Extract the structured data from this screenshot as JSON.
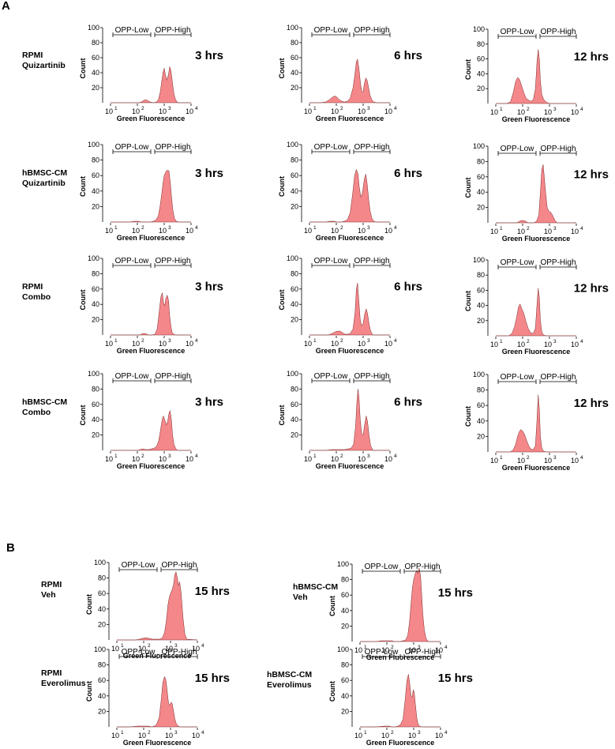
{
  "figure": {
    "panels": [
      {
        "letter": "A"
      },
      {
        "letter": "B"
      }
    ]
  },
  "chart_data": [
    {
      "type": "area",
      "panel": "A",
      "row": [
        "RPMI",
        "Quizartinib"
      ],
      "time": "3 hrs",
      "xlabel": "Green Fluorescence",
      "ylabel": "Count",
      "yticks": [
        20,
        40,
        60,
        80,
        100
      ],
      "ylim": [
        0,
        100
      ],
      "x_scale": "log",
      "xticks": [
        "10^1",
        "10^2",
        "10^3",
        "10^4"
      ],
      "gates": [
        "OPP-Low",
        "OPP-High"
      ],
      "x": [
        10,
        60,
        110,
        140,
        170,
        200,
        240,
        300,
        400,
        520,
        620,
        720,
        820,
        900,
        1000,
        1100,
        1250,
        1450,
        1600,
        1750,
        1900,
        2100,
        2300,
        2600,
        3000,
        3500,
        10000
      ],
      "y": [
        0,
        0,
        0,
        1,
        3,
        4,
        3,
        1,
        0,
        1,
        5,
        15,
        30,
        40,
        46,
        38,
        30,
        38,
        48,
        44,
        35,
        22,
        12,
        5,
        1,
        0,
        0
      ]
    },
    {
      "type": "area",
      "panel": "A",
      "row": [
        "RPMI",
        "Quizartinib"
      ],
      "time": "6 hrs",
      "xlabel": "Green Fluorescence",
      "ylabel": "Count",
      "yticks": [
        20,
        40,
        60,
        80,
        100
      ],
      "ylim": [
        0,
        100
      ],
      "x_scale": "log",
      "xticks": [
        "10^1",
        "10^2",
        "10^3",
        "10^4"
      ],
      "gates": [
        "OPP-Low",
        "OPP-High"
      ],
      "x": [
        10,
        25,
        40,
        55,
        70,
        85,
        100,
        130,
        160,
        200,
        260,
        330,
        420,
        500,
        560,
        620,
        700,
        800,
        900,
        1000,
        1100,
        1250,
        1400,
        1600,
        1800,
        2100,
        2500,
        3200,
        10000
      ],
      "y": [
        0,
        0,
        1,
        4,
        7,
        9,
        8,
        4,
        2,
        1,
        2,
        6,
        20,
        40,
        55,
        58,
        45,
        25,
        15,
        14,
        25,
        33,
        30,
        20,
        10,
        4,
        1,
        0,
        0
      ]
    },
    {
      "type": "area",
      "panel": "A",
      "row": [
        "RPMI",
        "Quizartinib"
      ],
      "time": "12 hrs",
      "xlabel": "Green Fluorescence",
      "ylabel": "Count",
      "yticks": [
        20,
        40,
        60,
        80,
        100
      ],
      "ylim": [
        0,
        100
      ],
      "x_scale": "log",
      "xticks": [
        "10^1",
        "10^2",
        "10^3",
        "10^4"
      ],
      "gates": [
        "OPP-Low",
        "OPP-High"
      ],
      "x": [
        10,
        25,
        35,
        45,
        55,
        65,
        75,
        90,
        110,
        130,
        160,
        200,
        250,
        300,
        340,
        380,
        420,
        460,
        520,
        600,
        700,
        850,
        1100,
        1500,
        10000
      ],
      "y": [
        0,
        0,
        2,
        15,
        30,
        35,
        33,
        25,
        15,
        8,
        5,
        3,
        5,
        20,
        55,
        73,
        60,
        30,
        12,
        6,
        3,
        1,
        0,
        0,
        0
      ]
    },
    {
      "type": "area",
      "panel": "A",
      "row": [
        "hBMSC-CM",
        "Quizartinib"
      ],
      "time": "3 hrs",
      "xlabel": "Green Fluorescence",
      "ylabel": "Count",
      "yticks": [
        20,
        40,
        60,
        80,
        100
      ],
      "ylim": [
        0,
        100
      ],
      "x_scale": "log",
      "xticks": [
        "10^1",
        "10^2",
        "10^3",
        "10^4"
      ],
      "gates": [
        "OPP-Low",
        "OPP-High"
      ],
      "x": [
        10,
        50,
        80,
        110,
        140,
        200,
        300,
        400,
        500,
        600,
        700,
        800,
        900,
        1000,
        1150,
        1300,
        1500,
        1700,
        1900,
        2100,
        2400,
        2800,
        3500,
        10000
      ],
      "y": [
        0,
        0,
        1,
        1,
        0,
        0,
        0,
        1,
        3,
        8,
        20,
        35,
        50,
        60,
        65,
        67,
        66,
        50,
        30,
        15,
        5,
        1,
        0,
        0
      ]
    },
    {
      "type": "area",
      "panel": "A",
      "row": [
        "hBMSC-CM",
        "Quizartinib"
      ],
      "time": "6 hrs",
      "xlabel": "Green Fluorescence",
      "ylabel": "Count",
      "yticks": [
        20,
        40,
        60,
        80,
        100
      ],
      "ylim": [
        0,
        100
      ],
      "x_scale": "log",
      "xticks": [
        "10^1",
        "10^2",
        "10^3",
        "10^4"
      ],
      "gates": [
        "OPP-Low",
        "OPP-High"
      ],
      "x": [
        10,
        40,
        60,
        80,
        110,
        150,
        200,
        260,
        330,
        400,
        480,
        560,
        640,
        720,
        820,
        950,
        1100,
        1250,
        1400,
        1600,
        1800,
        2100,
        2500,
        3000,
        10000
      ],
      "y": [
        0,
        0,
        1,
        1,
        0,
        0,
        1,
        3,
        12,
        35,
        60,
        68,
        62,
        45,
        32,
        38,
        55,
        62,
        50,
        30,
        15,
        5,
        1,
        0,
        0
      ]
    },
    {
      "type": "area",
      "panel": "A",
      "row": [
        "hBMSC-CM",
        "Quizartinib"
      ],
      "time": "12 hrs",
      "xlabel": "Green Fluorescence",
      "ylabel": "Count",
      "yticks": [
        20,
        40,
        60,
        80,
        100
      ],
      "ylim": [
        0,
        100
      ],
      "x_scale": "log",
      "xticks": [
        "10^1",
        "10^2",
        "10^3",
        "10^4"
      ],
      "gates": [
        "OPP-Low",
        "OPP-High"
      ],
      "x": [
        10,
        60,
        75,
        90,
        110,
        130,
        160,
        200,
        260,
        330,
        400,
        460,
        520,
        580,
        640,
        720,
        820,
        950,
        1100,
        1300,
        1600,
        2000,
        10000
      ],
      "y": [
        0,
        0,
        2,
        3,
        3,
        2,
        0,
        0,
        0,
        2,
        10,
        40,
        70,
        76,
        60,
        40,
        20,
        15,
        14,
        10,
        3,
        0,
        0
      ]
    },
    {
      "type": "area",
      "panel": "A",
      "row": [
        "RPMI",
        "Combo"
      ],
      "time": "3 hrs",
      "xlabel": "Green Fluorescence",
      "ylabel": "Count",
      "yticks": [
        20,
        40,
        60,
        80,
        100
      ],
      "ylim": [
        0,
        100
      ],
      "x_scale": "log",
      "xticks": [
        "10^1",
        "10^2",
        "10^3",
        "10^4"
      ],
      "gates": [
        "OPP-Low",
        "OPP-High"
      ],
      "x": [
        10,
        120,
        160,
        200,
        260,
        350,
        450,
        550,
        650,
        750,
        850,
        950,
        1050,
        1150,
        1300,
        1450,
        1600,
        1800,
        2000,
        2300,
        2700,
        10000
      ],
      "y": [
        0,
        0,
        2,
        2,
        0,
        0,
        1,
        8,
        30,
        50,
        55,
        42,
        38,
        48,
        52,
        45,
        25,
        10,
        3,
        1,
        0,
        0
      ]
    },
    {
      "type": "area",
      "panel": "A",
      "row": [
        "RPMI",
        "Combo"
      ],
      "time": "6 hrs",
      "xlabel": "Green Fluorescence",
      "ylabel": "Count",
      "yticks": [
        20,
        40,
        60,
        80,
        100
      ],
      "ylim": [
        0,
        100
      ],
      "x_scale": "log",
      "xticks": [
        "10^1",
        "10^2",
        "10^3",
        "10^4"
      ],
      "gates": [
        "OPP-Low",
        "OPP-High"
      ],
      "x": [
        10,
        50,
        70,
        90,
        110,
        140,
        170,
        210,
        260,
        330,
        420,
        500,
        560,
        620,
        690,
        780,
        880,
        1000,
        1150,
        1300,
        1450,
        1650,
        1900,
        2300,
        10000
      ],
      "y": [
        0,
        0,
        2,
        4,
        5,
        5,
        3,
        1,
        1,
        2,
        8,
        30,
        60,
        68,
        45,
        20,
        12,
        15,
        28,
        34,
        28,
        15,
        5,
        0,
        0
      ]
    },
    {
      "type": "area",
      "panel": "A",
      "row": [
        "RPMI",
        "Combo"
      ],
      "time": "12 hrs",
      "xlabel": "Green Fluorescence",
      "ylabel": "Count",
      "yticks": [
        20,
        40,
        60,
        80,
        100
      ],
      "ylim": [
        0,
        100
      ],
      "x_scale": "log",
      "xticks": [
        "10^1",
        "10^2",
        "10^3",
        "10^4"
      ],
      "gates": [
        "OPP-Low",
        "OPP-High"
      ],
      "x": [
        10,
        30,
        40,
        50,
        60,
        70,
        80,
        95,
        110,
        130,
        160,
        200,
        250,
        300,
        340,
        380,
        420,
        460,
        520,
        600,
        750,
        10000
      ],
      "y": [
        0,
        0,
        3,
        12,
        25,
        38,
        42,
        35,
        30,
        20,
        10,
        4,
        3,
        10,
        40,
        63,
        50,
        20,
        5,
        1,
        0,
        0
      ]
    },
    {
      "type": "area",
      "panel": "A",
      "row": [
        "hBMSC-CM",
        "Combo"
      ],
      "time": "3 hrs",
      "xlabel": "Green Fluorescence",
      "ylabel": "Count",
      "yticks": [
        20,
        40,
        60,
        80,
        100
      ],
      "ylim": [
        0,
        100
      ],
      "x_scale": "log",
      "xticks": [
        "10^1",
        "10^2",
        "10^3",
        "10^4"
      ],
      "gates": [
        "OPP-Low",
        "OPP-High"
      ],
      "x": [
        10,
        100,
        130,
        160,
        200,
        260,
        340,
        420,
        520,
        620,
        720,
        820,
        920,
        1050,
        1200,
        1350,
        1500,
        1650,
        1850,
        2050,
        2300,
        2700,
        3200,
        10000
      ],
      "y": [
        0,
        0,
        1,
        2,
        1,
        1,
        2,
        3,
        5,
        12,
        25,
        38,
        45,
        40,
        33,
        38,
        48,
        52,
        40,
        20,
        8,
        2,
        0,
        0
      ]
    },
    {
      "type": "area",
      "panel": "A",
      "row": [
        "hBMSC-CM",
        "Combo"
      ],
      "time": "6 hrs",
      "xlabel": "Green Fluorescence",
      "ylabel": "Count",
      "yticks": [
        20,
        40,
        60,
        80,
        100
      ],
      "ylim": [
        0,
        100
      ],
      "x_scale": "log",
      "xticks": [
        "10^1",
        "10^2",
        "10^3",
        "10^4"
      ],
      "gates": [
        "OPP-Low",
        "OPP-High"
      ],
      "x": [
        10,
        40,
        70,
        100,
        150,
        200,
        280,
        360,
        440,
        520,
        580,
        640,
        700,
        780,
        880,
        1000,
        1150,
        1300,
        1450,
        1650,
        1900,
        2300,
        10000
      ],
      "y": [
        0,
        0,
        1,
        1,
        1,
        1,
        2,
        3,
        8,
        30,
        62,
        80,
        70,
        40,
        22,
        20,
        35,
        45,
        38,
        20,
        6,
        0,
        0
      ]
    },
    {
      "type": "area",
      "panel": "A",
      "row": [
        "hBMSC-CM",
        "Combo"
      ],
      "time": "12 hrs",
      "xlabel": "Green Fluorescence",
      "ylabel": "Count",
      "yticks": [
        20,
        40,
        60,
        80,
        100
      ],
      "ylim": [
        0,
        100
      ],
      "x_scale": "log",
      "xticks": [
        "10^1",
        "10^2",
        "10^3",
        "10^4"
      ],
      "gates": [
        "OPP-Low",
        "OPP-High"
      ],
      "x": [
        10,
        35,
        45,
        55,
        65,
        75,
        85,
        100,
        120,
        140,
        170,
        200,
        250,
        300,
        340,
        380,
        420,
        460,
        520,
        600,
        750,
        10000
      ],
      "y": [
        0,
        0,
        3,
        10,
        20,
        26,
        29,
        27,
        22,
        15,
        8,
        4,
        3,
        8,
        40,
        74,
        55,
        20,
        5,
        1,
        0,
        0
      ]
    },
    {
      "type": "area",
      "panel": "B",
      "row": [
        "RPMI",
        "Veh"
      ],
      "time": "15 hrs",
      "xlabel": "Green Fluorescence",
      "ylabel": "Count",
      "yticks": [
        20,
        40,
        60,
        80,
        100
      ],
      "ylim": [
        0,
        100
      ],
      "x_scale": "log",
      "xticks": [
        "10^1",
        "10^2",
        "10^3",
        "10^4"
      ],
      "gates": [
        "OPP-Low",
        "OPP-High"
      ],
      "x": [
        10,
        50,
        70,
        90,
        120,
        160,
        220,
        300,
        400,
        500,
        600,
        700,
        800,
        900,
        1000,
        1150,
        1300,
        1450,
        1600,
        1800,
        2000,
        2200,
        2500,
        2900,
        3400,
        4000,
        10000
      ],
      "y": [
        0,
        0,
        1,
        2,
        3,
        2,
        1,
        1,
        1,
        3,
        10,
        25,
        45,
        55,
        60,
        65,
        72,
        85,
        88,
        80,
        70,
        75,
        60,
        30,
        8,
        1,
        0
      ]
    },
    {
      "type": "area",
      "panel": "B",
      "row": [
        "hBMSC-CM",
        "Veh"
      ],
      "time": "15 hrs",
      "xlabel": "Green Fluorescence",
      "ylabel": "Count",
      "yticks": [
        20,
        40,
        60,
        80,
        100
      ],
      "ylim": [
        0,
        100
      ],
      "x_scale": "log",
      "xticks": [
        "10^1",
        "10^2",
        "10^3",
        "10^4"
      ],
      "gates": [
        "OPP-Low",
        "OPP-High"
      ],
      "x": [
        10,
        40,
        60,
        80,
        110,
        150,
        200,
        300,
        400,
        500,
        600,
        700,
        800,
        900,
        1000,
        1150,
        1300,
        1450,
        1600,
        1800,
        2000,
        2200,
        2500,
        2900,
        3500,
        10000
      ],
      "y": [
        0,
        0,
        1,
        1,
        1,
        1,
        0,
        0,
        1,
        2,
        8,
        25,
        50,
        70,
        80,
        88,
        92,
        88,
        95,
        85,
        60,
        35,
        15,
        4,
        0,
        0
      ]
    },
    {
      "type": "area",
      "panel": "B",
      "row": [
        "RPMI",
        "Everolimus"
      ],
      "time": "15 hrs",
      "xlabel": "Green Fluorescence",
      "ylabel": "Count",
      "yticks": [
        20,
        40,
        60,
        80,
        100
      ],
      "ylim": [
        0,
        100
      ],
      "x_scale": "log",
      "xticks": [
        "10^1",
        "10^2",
        "10^3",
        "10^4"
      ],
      "gates": [
        "OPP-Low",
        "OPP-High"
      ],
      "x": [
        10,
        30,
        60,
        100,
        150,
        200,
        250,
        300,
        380,
        450,
        520,
        600,
        680,
        760,
        850,
        950,
        1050,
        1150,
        1300,
        1450,
        1650,
        1900,
        2300,
        10000
      ],
      "y": [
        0,
        0,
        1,
        1,
        1,
        0,
        1,
        3,
        12,
        35,
        58,
        65,
        60,
        45,
        30,
        28,
        32,
        30,
        20,
        10,
        4,
        1,
        0,
        0
      ]
    },
    {
      "type": "area",
      "panel": "B",
      "row": [
        "hBMSC-CM",
        "Everolimus"
      ],
      "time": "15 hrs",
      "xlabel": "Green Fluorescence",
      "ylabel": "Count",
      "yticks": [
        20,
        40,
        60,
        80,
        100
      ],
      "ylim": [
        0,
        100
      ],
      "x_scale": "log",
      "xticks": [
        "10^1",
        "10^2",
        "10^3",
        "10^4"
      ],
      "gates": [
        "OPP-Low",
        "OPP-High"
      ],
      "x": [
        10,
        40,
        80,
        120,
        160,
        200,
        260,
        320,
        400,
        480,
        560,
        640,
        720,
        800,
        880,
        960,
        1050,
        1150,
        1300,
        1450,
        1650,
        2000,
        10000
      ],
      "y": [
        0,
        0,
        1,
        1,
        0,
        0,
        1,
        3,
        10,
        35,
        60,
        68,
        55,
        40,
        38,
        48,
        45,
        30,
        12,
        4,
        1,
        0,
        0
      ]
    }
  ]
}
